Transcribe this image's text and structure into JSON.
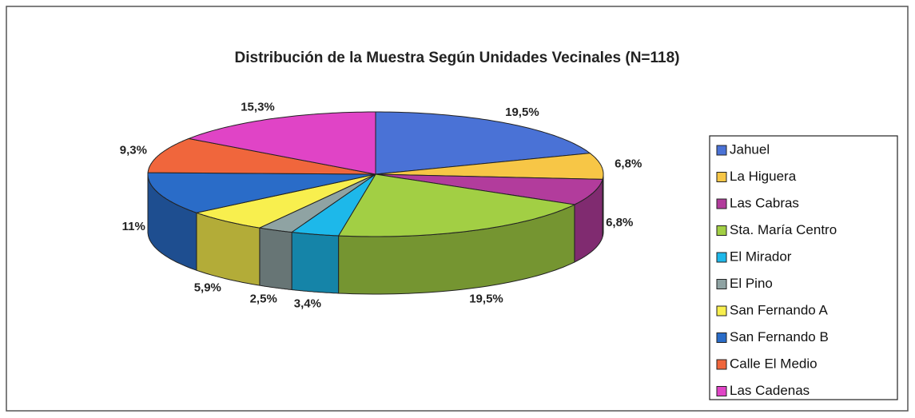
{
  "chart_data": {
    "type": "pie3d",
    "title": "Distribución de la Muestra Según Unidades Vecinales (N=118)",
    "categories": [
      "Jahuel",
      "La Higuera",
      "Las Cabras",
      "Sta. María Centro",
      "El Mirador",
      "El Pino",
      "San Fernando A",
      "San Fernando B",
      "Calle El Medio",
      "Las Cadenas"
    ],
    "values": [
      19.5,
      6.8,
      6.8,
      19.5,
      3.4,
      2.5,
      5.9,
      11,
      9.3,
      15.3
    ],
    "value_labels": [
      "19,5%",
      "6,8%",
      "6,8%",
      "19,5%",
      "3,4%",
      "2,5%",
      "5,9%",
      "11%",
      "9,3%",
      "15,3%"
    ],
    "colors": [
      "#4a72d6",
      "#f7c646",
      "#b23c9c",
      "#a2cf44",
      "#1db8ea",
      "#8fa3a3",
      "#f8ef4e",
      "#2a6cc8",
      "#f0663c",
      "#e044c6"
    ],
    "legend": "right"
  }
}
